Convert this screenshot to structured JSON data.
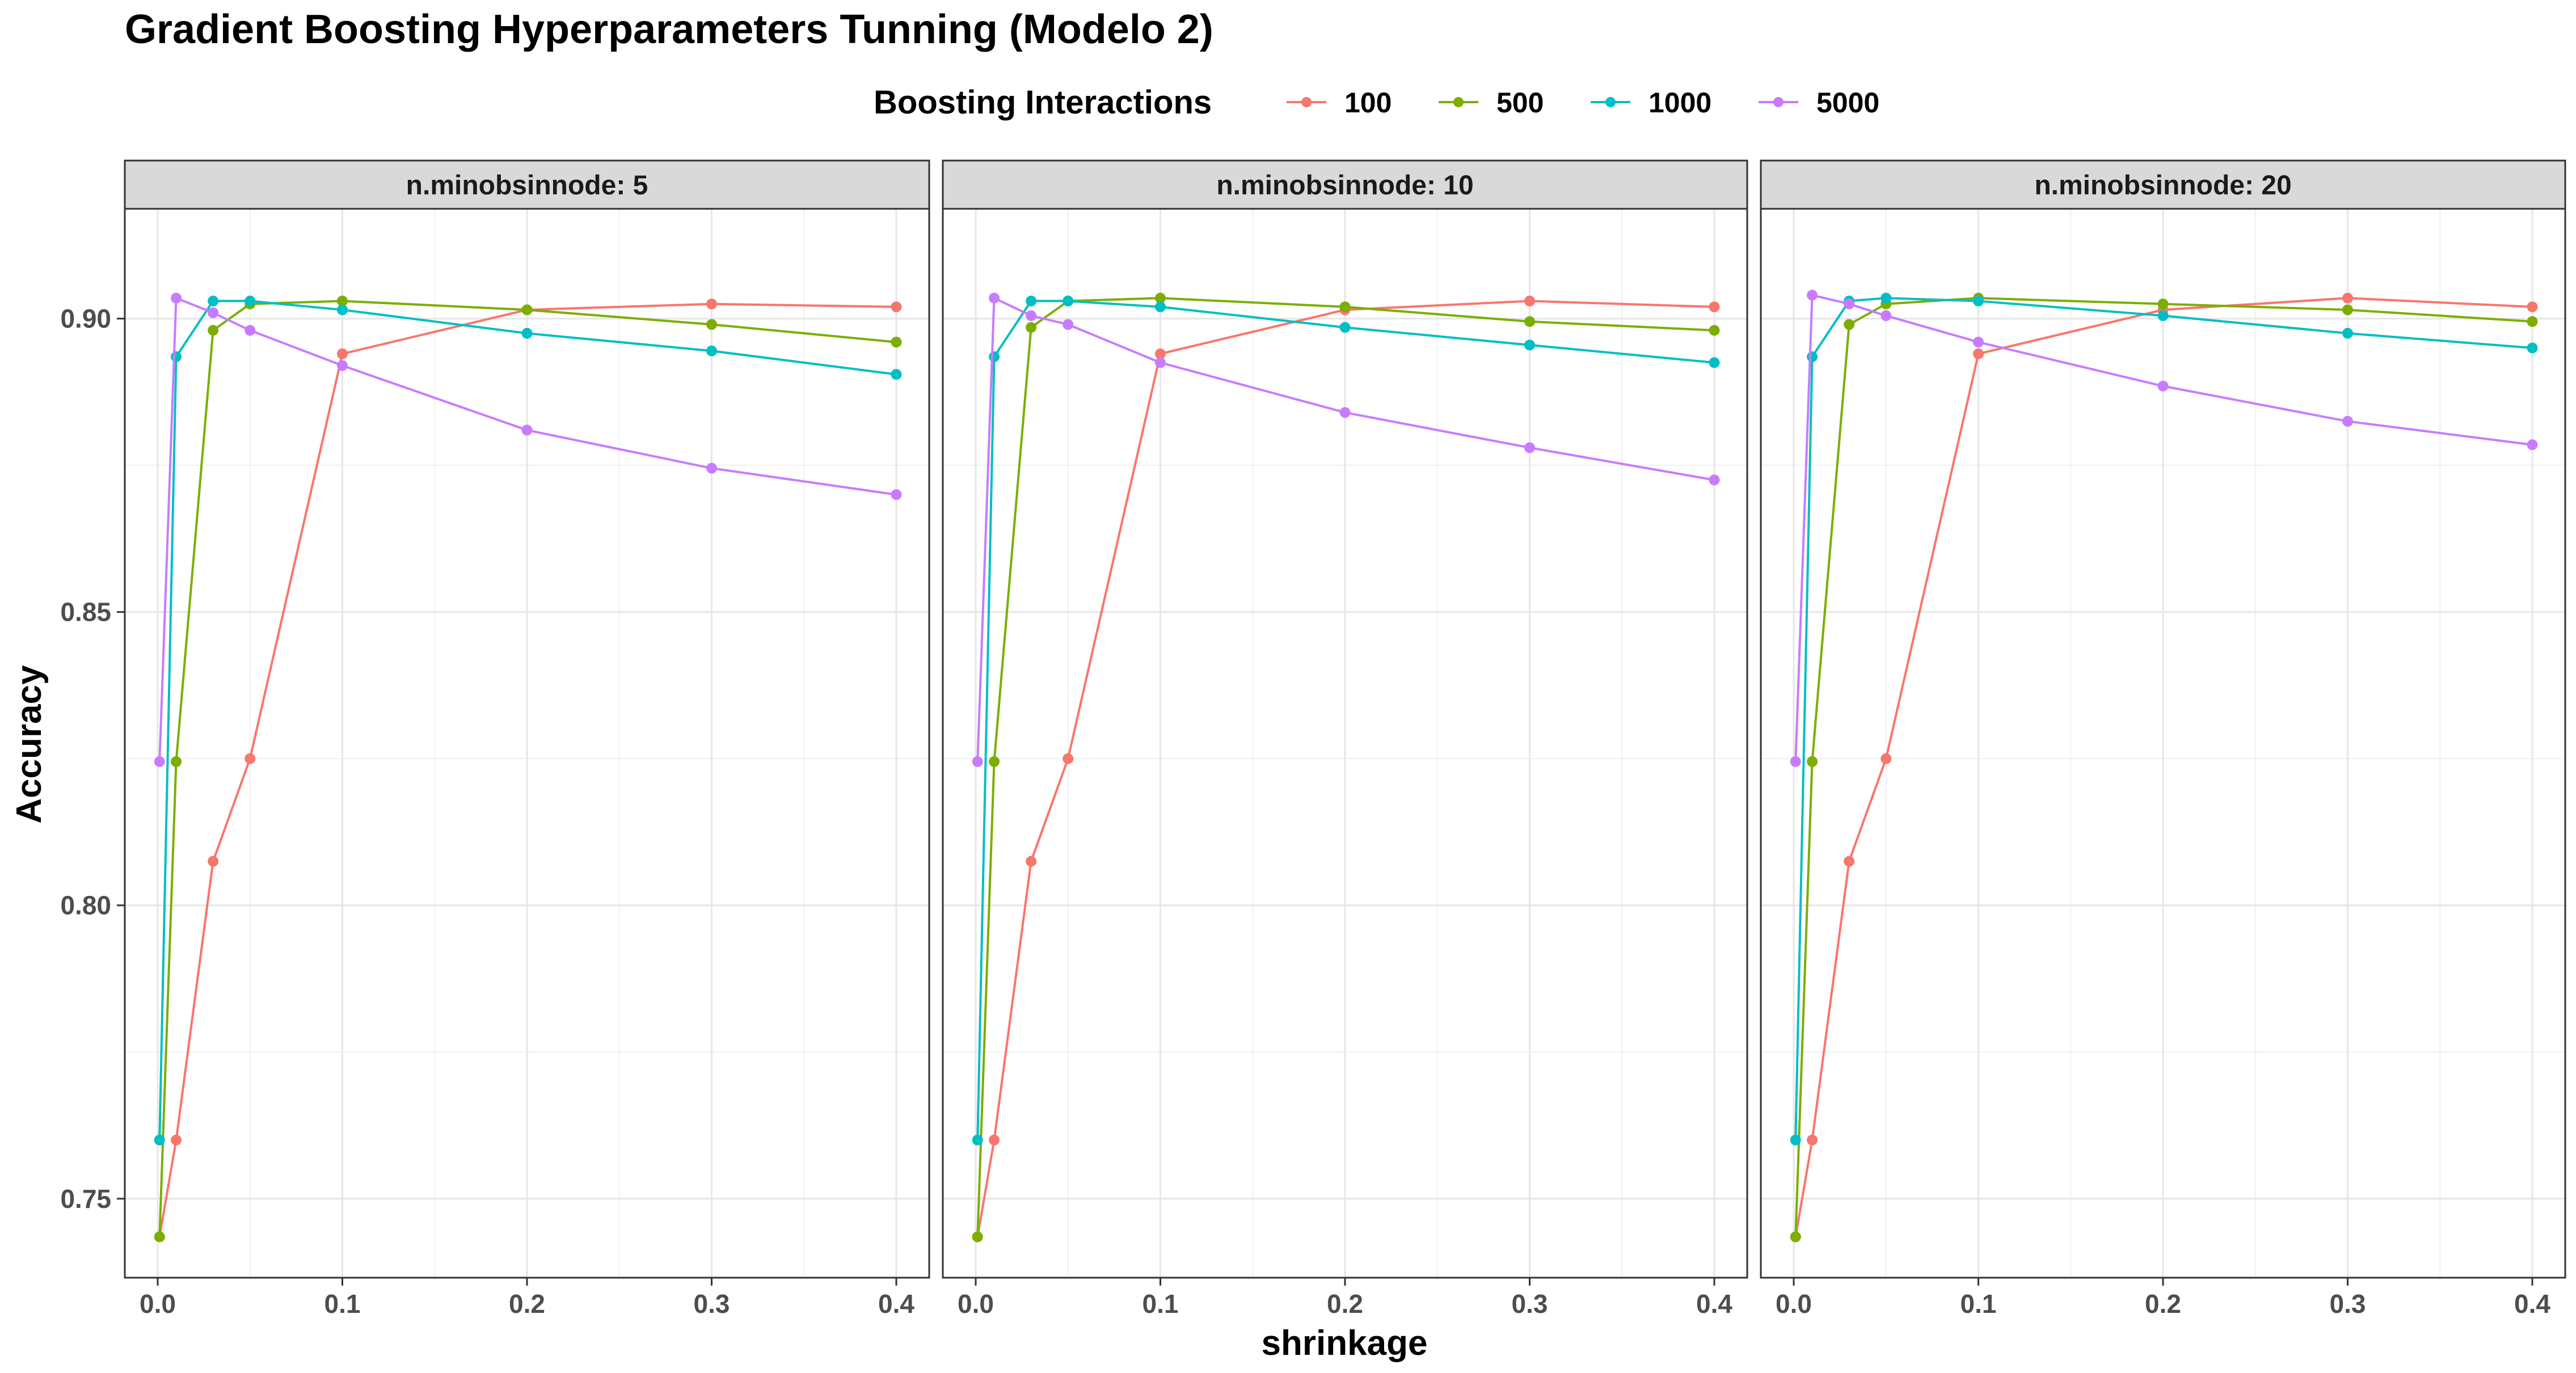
{
  "chart_data": {
    "type": "line",
    "title": "Gradient Boosting Hyperparameters Tunning (Modelo 2)",
    "xlabel": "shrinkage",
    "ylabel": "Accuracy",
    "xlim": [
      0,
      0.4
    ],
    "ylim": [
      0.7435,
      0.9105
    ],
    "x_ticks": [
      "0.0",
      "0.1",
      "0.2",
      "0.3",
      "0.4"
    ],
    "y_ticks": [
      "0.75",
      "0.80",
      "0.85",
      "0.90"
    ],
    "grid": true,
    "legend": {
      "title": "Boosting Interactions",
      "position": "top",
      "entries": [
        "100",
        "500",
        "1000",
        "5000"
      ]
    },
    "x": [
      0.001,
      0.01,
      0.03,
      0.05,
      0.1,
      0.2,
      0.3,
      0.4
    ],
    "colors": {
      "100": "#F8766D",
      "500": "#7CAE00",
      "1000": "#00BFC4",
      "5000": "#C77CFF"
    },
    "panels": [
      {
        "strip": "n.minobsinnode: 5",
        "series": [
          {
            "name": "100",
            "values": [
              0.7435,
              0.76,
              0.8075,
              0.825,
              0.894,
              0.9015,
              0.9025,
              0.902
            ]
          },
          {
            "name": "500",
            "values": [
              0.7435,
              0.8245,
              0.898,
              0.9025,
              0.903,
              0.9015,
              0.899,
              0.896
            ]
          },
          {
            "name": "1000",
            "values": [
              0.76,
              0.8935,
              0.903,
              0.903,
              0.9015,
              0.8975,
              0.8945,
              0.8905
            ]
          },
          {
            "name": "5000",
            "values": [
              0.8245,
              0.9035,
              0.901,
              0.898,
              0.892,
              0.881,
              0.8745,
              0.87
            ]
          }
        ]
      },
      {
        "strip": "n.minobsinnode: 10",
        "series": [
          {
            "name": "100",
            "values": [
              0.7435,
              0.76,
              0.8075,
              0.825,
              0.894,
              0.9015,
              0.903,
              0.902
            ]
          },
          {
            "name": "500",
            "values": [
              0.7435,
              0.8245,
              0.8985,
              0.903,
              0.9035,
              0.902,
              0.8995,
              0.898
            ]
          },
          {
            "name": "1000",
            "values": [
              0.76,
              0.8935,
              0.903,
              0.903,
              0.902,
              0.8985,
              0.8955,
              0.8925
            ]
          },
          {
            "name": "5000",
            "values": [
              0.8245,
              0.9035,
              0.9005,
              0.899,
              0.8925,
              0.884,
              0.878,
              0.8725
            ]
          }
        ]
      },
      {
        "strip": "n.minobsinnode: 20",
        "series": [
          {
            "name": "100",
            "values": [
              0.7435,
              0.76,
              0.8075,
              0.825,
              0.894,
              0.9015,
              0.9035,
              0.902
            ]
          },
          {
            "name": "500",
            "values": [
              0.7435,
              0.8245,
              0.899,
              0.9025,
              0.9035,
              0.9025,
              0.9015,
              0.8995
            ]
          },
          {
            "name": "1000",
            "values": [
              0.76,
              0.8935,
              0.903,
              0.9035,
              0.903,
              0.9005,
              0.8975,
              0.895
            ]
          },
          {
            "name": "5000",
            "values": [
              0.8245,
              0.904,
              0.9025,
              0.9005,
              0.896,
              0.8885,
              0.8825,
              0.8785
            ]
          }
        ]
      }
    ]
  }
}
